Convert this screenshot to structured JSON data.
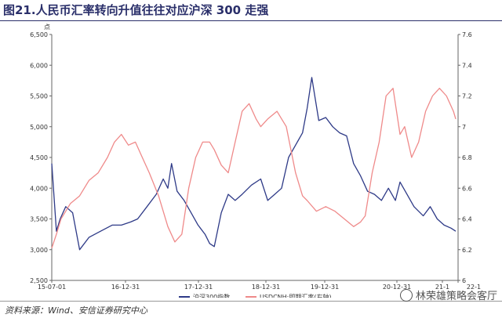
{
  "header": {
    "title": "图21.人民币汇率转向升值往往对应沪深 300 走强"
  },
  "footer": {
    "source": "资料来源：Wind、安信证券研究中心",
    "watermark": "林荣雄策略会客厅",
    "watermark_icon": "wechat-icon"
  },
  "chart_data": {
    "type": "line",
    "title": "图21.人民币汇率转向升值往往对应沪深 300 走强",
    "y_left": {
      "label": "点",
      "range": [
        2500,
        6500
      ],
      "ticks": [
        "2,500",
        "3,000",
        "3,500",
        "4,000",
        "4,500",
        "5,000",
        "5,500",
        "6,000",
        "6,500"
      ]
    },
    "y_right": {
      "label": "",
      "range": [
        6.0,
        7.6
      ],
      "ticks": [
        "6",
        "6.2",
        "6.4",
        "6.6",
        "6.8",
        "7",
        "7.2",
        "7.4",
        "7.6"
      ]
    },
    "x_ticks": [
      "15-07-01",
      "16-12-31",
      "17-12-31",
      "18-12-31",
      "19-12-31",
      "20-12-31",
      "21-1",
      "22-1"
    ],
    "legend": {
      "position": "bottom"
    },
    "grid": false,
    "series": [
      {
        "name": "沪深300指数",
        "axis": "left",
        "color": "#2e3a87",
        "x": [
          2015.5,
          2015.6,
          2015.68,
          2015.8,
          2015.95,
          2016.1,
          2016.3,
          2016.55,
          2016.8,
          2017.0,
          2017.2,
          2017.35,
          2017.55,
          2017.75,
          2017.9,
          2018.0,
          2018.08,
          2018.2,
          2018.35,
          2018.5,
          2018.65,
          2018.8,
          2018.9,
          2019.0,
          2019.15,
          2019.3,
          2019.45,
          2019.6,
          2019.8,
          2020.0,
          2020.15,
          2020.3,
          2020.45,
          2020.6,
          2020.75,
          2020.9,
          2021.0,
          2021.1,
          2021.25,
          2021.4,
          2021.55,
          2021.7,
          2021.85,
          2022.0,
          2022.15,
          2022.3,
          2022.45,
          2022.6,
          2022.75,
          2022.9,
          2023.0,
          2023.15,
          2023.3,
          2023.5,
          2023.65,
          2023.8,
          2023.95,
          2024.1,
          2024.2
        ],
        "y": [
          4400,
          3300,
          3500,
          3700,
          3600,
          3000,
          3200,
          3300,
          3400,
          3400,
          3450,
          3500,
          3700,
          3900,
          4150,
          4000,
          4400,
          3950,
          3800,
          3600,
          3400,
          3250,
          3100,
          3050,
          3600,
          3900,
          3800,
          3900,
          4050,
          4150,
          3800,
          3900,
          4000,
          4500,
          4700,
          4900,
          5300,
          5800,
          5100,
          5150,
          5000,
          4900,
          4850,
          4400,
          4200,
          3950,
          3900,
          3800,
          4000,
          3800,
          4100,
          3900,
          3700,
          3550,
          3700,
          3500,
          3400,
          3350,
          3300
        ]
      },
      {
        "name": "USDCNH:即期汇率(右轴)",
        "axis": "right",
        "color": "#ef8a8a",
        "x": [
          2015.5,
          2015.6,
          2015.7,
          2015.9,
          2016.1,
          2016.3,
          2016.5,
          2016.7,
          2016.85,
          2017.0,
          2017.15,
          2017.3,
          2017.45,
          2017.6,
          2017.8,
          2018.0,
          2018.15,
          2018.3,
          2018.45,
          2018.6,
          2018.75,
          2018.9,
          2019.0,
          2019.15,
          2019.3,
          2019.45,
          2019.6,
          2019.75,
          2019.9,
          2020.0,
          2020.15,
          2020.35,
          2020.55,
          2020.75,
          2020.9,
          2021.0,
          2021.2,
          2021.4,
          2021.6,
          2021.8,
          2022.0,
          2022.15,
          2022.25,
          2022.4,
          2022.55,
          2022.7,
          2022.85,
          2023.0,
          2023.1,
          2023.25,
          2023.4,
          2023.55,
          2023.7,
          2023.85,
          2024.0,
          2024.15,
          2024.2
        ],
        "y": [
          6.21,
          6.3,
          6.4,
          6.5,
          6.55,
          6.65,
          6.7,
          6.8,
          6.9,
          6.95,
          6.88,
          6.9,
          6.8,
          6.7,
          6.55,
          6.35,
          6.25,
          6.3,
          6.6,
          6.8,
          6.9,
          6.9,
          6.85,
          6.75,
          6.7,
          6.9,
          7.1,
          7.15,
          7.05,
          7.0,
          7.05,
          7.1,
          7.0,
          6.7,
          6.55,
          6.52,
          6.45,
          6.48,
          6.45,
          6.4,
          6.35,
          6.38,
          6.42,
          6.7,
          6.9,
          7.2,
          7.25,
          6.95,
          7.0,
          6.8,
          6.9,
          7.1,
          7.2,
          7.25,
          7.2,
          7.1,
          7.05
        ]
      }
    ]
  }
}
